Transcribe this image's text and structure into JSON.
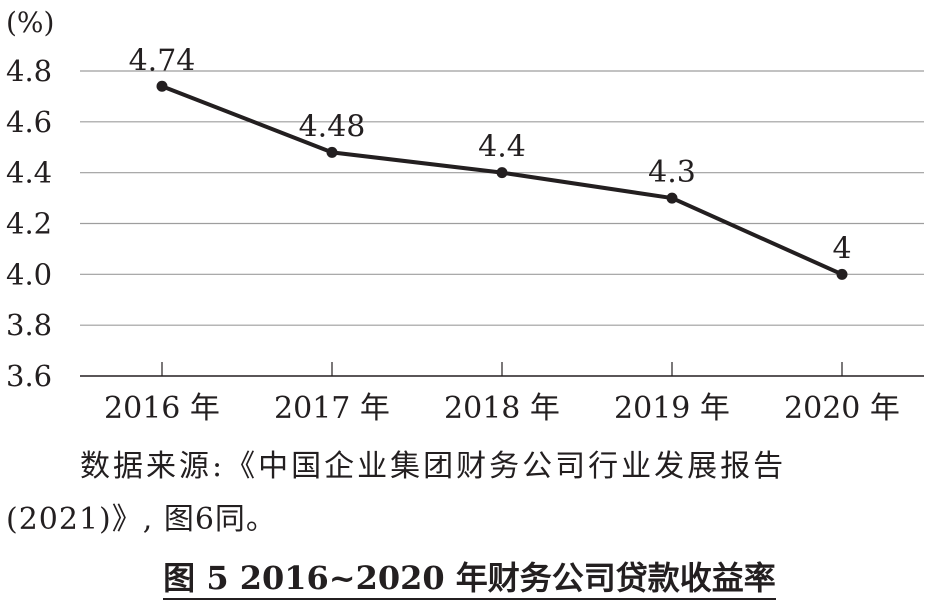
{
  "chart_data": {
    "type": "line",
    "unit_label": "(%)",
    "categories": [
      "2016 年",
      "2017 年",
      "2018 年",
      "2019 年",
      "2020 年"
    ],
    "series": [
      {
        "values": [
          4.74,
          4.48,
          4.4,
          4.3,
          4.0
        ]
      }
    ],
    "data_labels": [
      "4.74",
      "4.48",
      "4.4",
      "4.3",
      "4"
    ],
    "ylim": [
      3.6,
      4.8
    ],
    "y_ticks": [
      3.6,
      3.8,
      4.0,
      4.2,
      4.4,
      4.6,
      4.8
    ],
    "y_tick_labels": [
      "3.6",
      "3.8",
      "4.0",
      "4.2",
      "4.4",
      "4.6",
      "4.8"
    ],
    "grid": true,
    "line_color": "#231f20",
    "grid_color": "#9e9e9e"
  },
  "source": {
    "line1": "数据来源:《中国企业集团财务公司行业发展报告",
    "line2": "(2021)》, 图6同。"
  },
  "caption": "图 5  2016~2020 年财务公司贷款收益率"
}
